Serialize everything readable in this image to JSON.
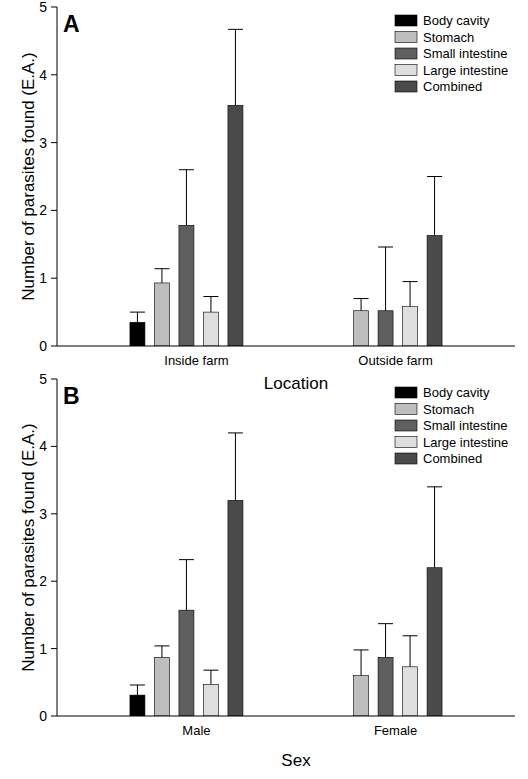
{
  "chart_data": [
    {
      "type": "bar",
      "title": "A",
      "x_label": "Location",
      "y_label": "Number of parasites found (E.A.)",
      "categories": [
        "Inside farm",
        "Outside farm"
      ],
      "series": [
        {
          "name": "Body cavity",
          "color": "#000000",
          "values": [
            0.35,
            null
          ],
          "errors": [
            0.15,
            null
          ]
        },
        {
          "name": "Stomach",
          "color": "#bebebe",
          "values": [
            0.93,
            0.52
          ],
          "errors": [
            0.21,
            0.18
          ]
        },
        {
          "name": "Small intestine",
          "color": "#5f5f5f",
          "values": [
            1.78,
            0.52
          ],
          "errors": [
            0.82,
            0.94
          ]
        },
        {
          "name": "Large intestine",
          "color": "#dedede",
          "values": [
            0.5,
            0.58
          ],
          "errors": [
            0.23,
            0.37
          ]
        },
        {
          "name": "Combined",
          "color": "#4a4a4a",
          "values": [
            3.55,
            1.63
          ],
          "errors": [
            1.12,
            0.87
          ]
        }
      ],
      "ylim": [
        0,
        5
      ],
      "yticks": [
        0,
        1,
        2,
        3,
        4,
        5
      ],
      "legend": "top-right"
    },
    {
      "type": "bar",
      "title": "B",
      "x_label": "Sex",
      "y_label": "Number of parasites found (E.A.)",
      "categories": [
        "Male",
        "Female"
      ],
      "series": [
        {
          "name": "Body cavity",
          "color": "#000000",
          "values": [
            0.31,
            null
          ],
          "errors": [
            0.15,
            null
          ]
        },
        {
          "name": "Stomach",
          "color": "#bebebe",
          "values": [
            0.87,
            0.6
          ],
          "errors": [
            0.17,
            0.38
          ]
        },
        {
          "name": "Small intestine",
          "color": "#5f5f5f",
          "values": [
            1.57,
            0.87
          ],
          "errors": [
            0.75,
            0.5
          ]
        },
        {
          "name": "Large intestine",
          "color": "#dedede",
          "values": [
            0.47,
            0.73
          ],
          "errors": [
            0.21,
            0.46
          ]
        },
        {
          "name": "Combined",
          "color": "#4a4a4a",
          "values": [
            3.2,
            2.2
          ],
          "errors": [
            1.0,
            1.2
          ]
        }
      ],
      "ylim": [
        0,
        5
      ],
      "yticks": [
        0,
        1,
        2,
        3,
        4,
        5
      ],
      "legend": "top-right"
    }
  ]
}
